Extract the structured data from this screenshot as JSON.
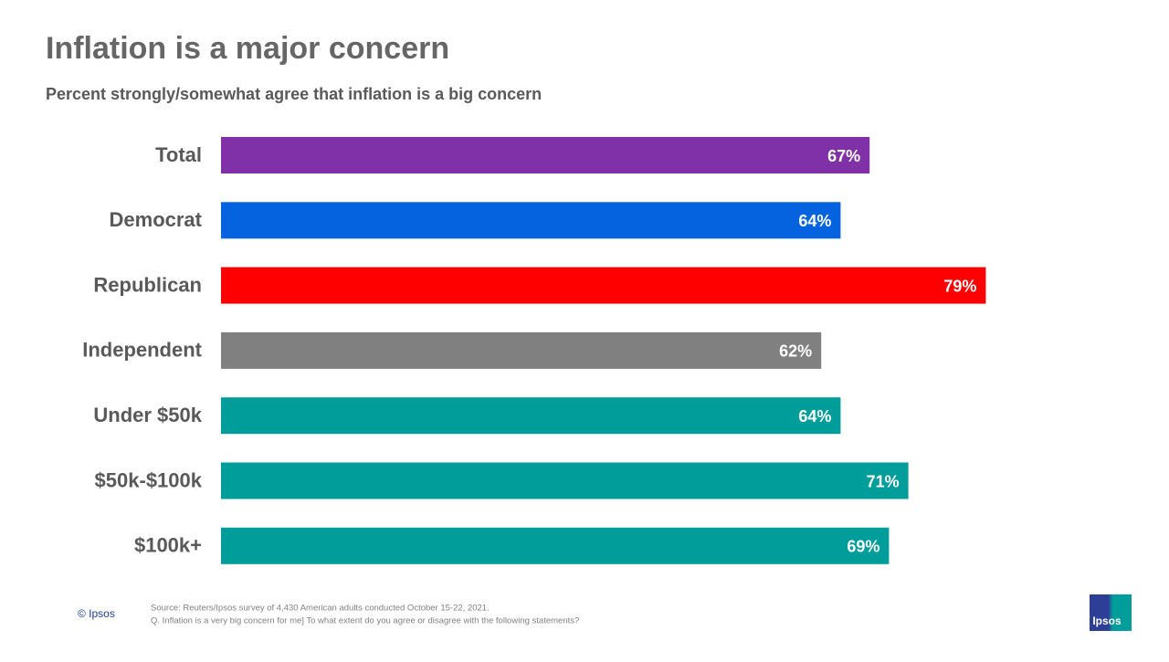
{
  "chart_data": {
    "type": "hbar",
    "title": "Inflation is a major concern",
    "subtitle": "Percent strongly/somewhat agree that inflation is a big concern",
    "categories": [
      "Total",
      "Democrat",
      "Republican",
      "Independent",
      "Under $50k",
      "$50k-$100k",
      "$100k+"
    ],
    "values": [
      67,
      64,
      79,
      62,
      64,
      71,
      69
    ],
    "value_labels": [
      "67%",
      "64%",
      "79%",
      "62%",
      "64%",
      "71%",
      "69%"
    ],
    "colors": [
      "#8031a7",
      "#0563e0",
      "#ff0000",
      "#808080",
      "#009d9a",
      "#009d9a",
      "#009d9a"
    ]
  },
  "footer": {
    "copyright": "© Ipsos",
    "source": [
      "Source: Reuters/Ipsos survey of 4,430 American adults conducted October 15-22, 2021.",
      "Q. Inflation is a very big concern for me] To what extent do you agree or disagree with the following statements?"
    ],
    "logo": "Ipsos"
  }
}
